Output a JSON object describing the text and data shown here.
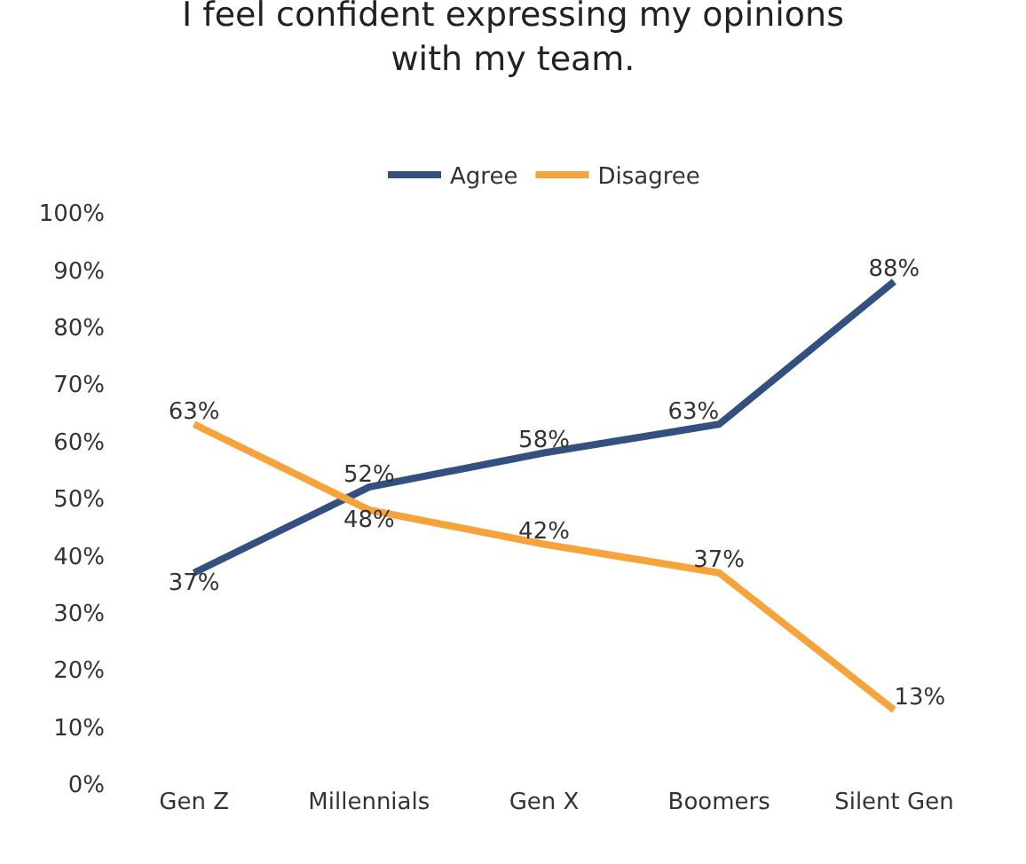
{
  "chart_data": {
    "type": "line",
    "title": "I feel confident expressing my opinions\nwith my team.",
    "categories": [
      "Gen Z",
      "Millennials",
      "Gen X",
      "Boomers",
      "Silent Gen"
    ],
    "series": [
      {
        "name": "Agree",
        "color": "#34507f",
        "values": [
          37,
          52,
          58,
          63,
          88
        ],
        "value_labels": [
          "37%",
          "52%",
          "58%",
          "63%",
          "88%"
        ]
      },
      {
        "name": "Disagree",
        "color": "#f5a33a",
        "values": [
          63,
          48,
          42,
          37,
          13
        ],
        "value_labels": [
          "63%",
          "48%",
          "42%",
          "37%",
          "13%"
        ]
      }
    ],
    "ylim": [
      0,
      100
    ],
    "yticks": [
      {
        "value": 0,
        "label": "0%"
      },
      {
        "value": 10,
        "label": "10%"
      },
      {
        "value": 20,
        "label": "20%"
      },
      {
        "value": 30,
        "label": "30%"
      },
      {
        "value": 40,
        "label": "40%"
      },
      {
        "value": 50,
        "label": "50%"
      },
      {
        "value": 60,
        "label": "60%"
      },
      {
        "value": 70,
        "label": "70%"
      },
      {
        "value": 80,
        "label": "80%"
      },
      {
        "value": 90,
        "label": "90%"
      },
      {
        "value": 100,
        "label": "100%"
      }
    ],
    "grid": false,
    "legend": "top",
    "marker": "none",
    "line_style": "solid"
  }
}
